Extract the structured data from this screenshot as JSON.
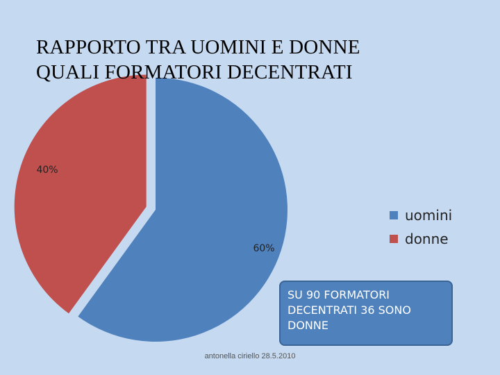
{
  "title": {
    "line1": "RAPPORTO TRA UOMINI E DONNE",
    "line2": "QUALI FORMATORI DECENTRATI"
  },
  "chart_data": {
    "type": "pie",
    "title": "",
    "slices": [
      {
        "name": "uomini",
        "value": 60,
        "label": "60%",
        "color": "#4f81bd"
      },
      {
        "name": "donne",
        "value": 40,
        "label": "40%",
        "color": "#c0504d",
        "exploded": true
      }
    ],
    "legend_position": "right"
  },
  "note": {
    "text": "SU 90 FORMATORI\nDECENTRATI 36 SONO\nDONNE"
  },
  "footer": {
    "text": "antonella ciriello 28.5.2010"
  }
}
